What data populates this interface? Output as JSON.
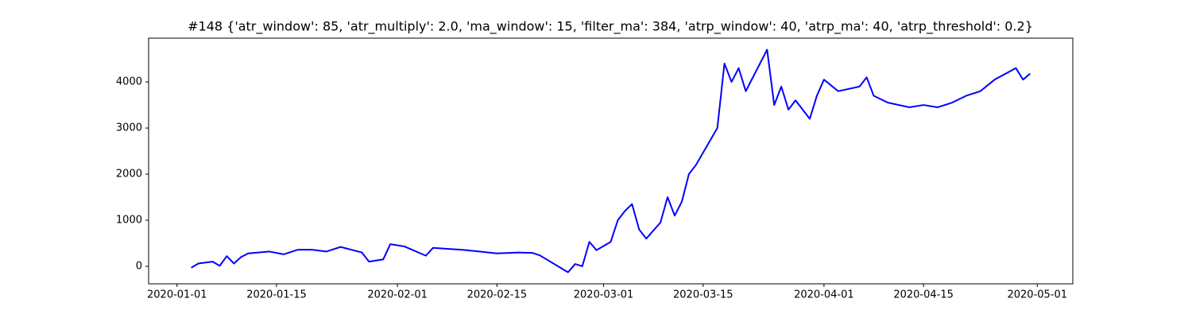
{
  "chart_data": {
    "type": "line",
    "title": "#148 {'atr_window': 85, 'atr_multiply': 2.0, 'ma_window': 15, 'filter_ma': 384, 'atrp_window': 40, 'atrp_ma': 40, 'atrp_threshold': 0.2}",
    "color": "#0000ff",
    "x": [
      "2020-01-03",
      "2020-01-04",
      "2020-01-06",
      "2020-01-07",
      "2020-01-08",
      "2020-01-09",
      "2020-01-10",
      "2020-01-11",
      "2020-01-14",
      "2020-01-16",
      "2020-01-18",
      "2020-01-20",
      "2020-01-22",
      "2020-01-24",
      "2020-01-27",
      "2020-01-28",
      "2020-01-30",
      "2020-01-31",
      "2020-02-02",
      "2020-02-05",
      "2020-02-06",
      "2020-02-08",
      "2020-02-10",
      "2020-02-12",
      "2020-02-15",
      "2020-02-18",
      "2020-02-20",
      "2020-02-21",
      "2020-02-25",
      "2020-02-26",
      "2020-02-27",
      "2020-02-28",
      "2020-02-29",
      "2020-03-02",
      "2020-03-03",
      "2020-03-04",
      "2020-03-05",
      "2020-03-06",
      "2020-03-07",
      "2020-03-09",
      "2020-03-10",
      "2020-03-11",
      "2020-03-12",
      "2020-03-13",
      "2020-03-14",
      "2020-03-17",
      "2020-03-18",
      "2020-03-19",
      "2020-03-20",
      "2020-03-21",
      "2020-03-24",
      "2020-03-25",
      "2020-03-26",
      "2020-03-27",
      "2020-03-28",
      "2020-03-30",
      "2020-03-31",
      "2020-04-01",
      "2020-04-03",
      "2020-04-06",
      "2020-04-07",
      "2020-04-08",
      "2020-04-10",
      "2020-04-13",
      "2020-04-15",
      "2020-04-17",
      "2020-04-19",
      "2020-04-21",
      "2020-04-23",
      "2020-04-25",
      "2020-04-28",
      "2020-04-29",
      "2020-04-30"
    ],
    "values": [
      -30,
      60,
      100,
      10,
      220,
      60,
      200,
      280,
      320,
      260,
      360,
      360,
      320,
      420,
      300,
      100,
      150,
      480,
      430,
      230,
      400,
      380,
      360,
      330,
      280,
      300,
      290,
      240,
      -130,
      50,
      0,
      530,
      350,
      530,
      1000,
      1200,
      1350,
      800,
      600,
      950,
      1500,
      1100,
      1400,
      2000,
      2200,
      3000,
      4400,
      4000,
      4300,
      3800,
      4700,
      3500,
      3900,
      3400,
      3600,
      3200,
      3700,
      4050,
      3800,
      3900,
      4100,
      3700,
      3550,
      3450,
      3500,
      3450,
      3550,
      3700,
      3800,
      4050,
      4300,
      4050,
      4180
    ],
    "xlim": [
      "2019-12-28",
      "2020-05-06"
    ],
    "xticks": [
      "2020-01-01",
      "2020-01-15",
      "2020-02-01",
      "2020-02-15",
      "2020-03-01",
      "2020-03-15",
      "2020-04-01",
      "2020-04-15",
      "2020-05-01"
    ],
    "ylim": [
      -380,
      4950
    ],
    "yticks": [
      0,
      1000,
      2000,
      3000,
      4000
    ]
  }
}
